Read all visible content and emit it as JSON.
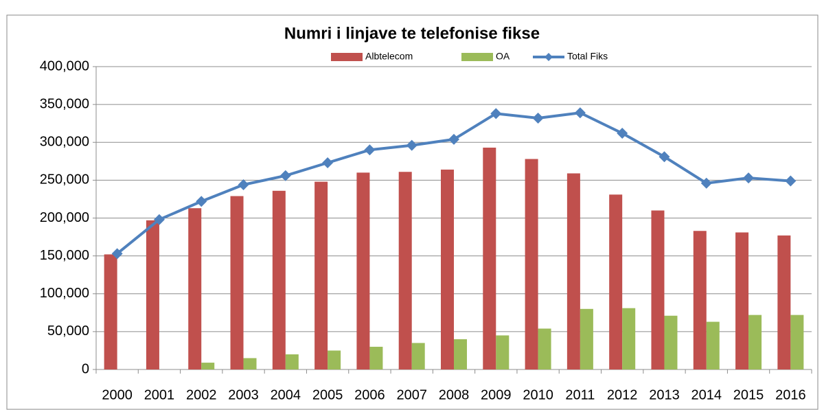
{
  "chart_data": {
    "type": "bar_line",
    "title": "Numri i linjave te telefonise fikse",
    "categories": [
      "2000",
      "2001",
      "2002",
      "2003",
      "2004",
      "2005",
      "2006",
      "2007",
      "2008",
      "2009",
      "2010",
      "2011",
      "2012",
      "2013",
      "2014",
      "2015",
      "2016"
    ],
    "series": [
      {
        "name": "Albtelecom",
        "type": "bar",
        "color": "#c0504d",
        "values": [
          152000,
          197000,
          213000,
          229000,
          236000,
          248000,
          260000,
          261000,
          264000,
          293000,
          278000,
          259000,
          231000,
          210000,
          183000,
          181000,
          177000
        ]
      },
      {
        "name": "OA",
        "type": "bar",
        "color": "#9bbb59",
        "values": [
          0,
          0,
          9000,
          15000,
          20000,
          25000,
          30000,
          35000,
          40000,
          45000,
          54000,
          80000,
          81000,
          71000,
          63000,
          72000,
          72000
        ]
      },
      {
        "name": "Total Fiks",
        "type": "line",
        "color": "#4f81bd",
        "values": [
          153000,
          198000,
          222000,
          244000,
          256000,
          273000,
          290000,
          296000,
          304000,
          338000,
          332000,
          339000,
          312000,
          281000,
          246000,
          253000,
          249000
        ]
      }
    ],
    "ylim": [
      0,
      400000
    ],
    "yticks": [
      0,
      {
        "value": 50000,
        "label": "50,000"
      },
      {
        "value": 100000,
        "label": "100,000"
      },
      {
        "value": 150000,
        "label": "150,000"
      },
      {
        "value": 200000,
        "label": "200,000"
      },
      {
        "value": 250000,
        "label": "250,000"
      },
      {
        "value": 300000,
        "label": "300,000"
      },
      {
        "value": 350000,
        "label": "350,000"
      },
      {
        "value": 400000,
        "label": "400,000"
      }
    ],
    "grid": true,
    "legend": "top"
  }
}
